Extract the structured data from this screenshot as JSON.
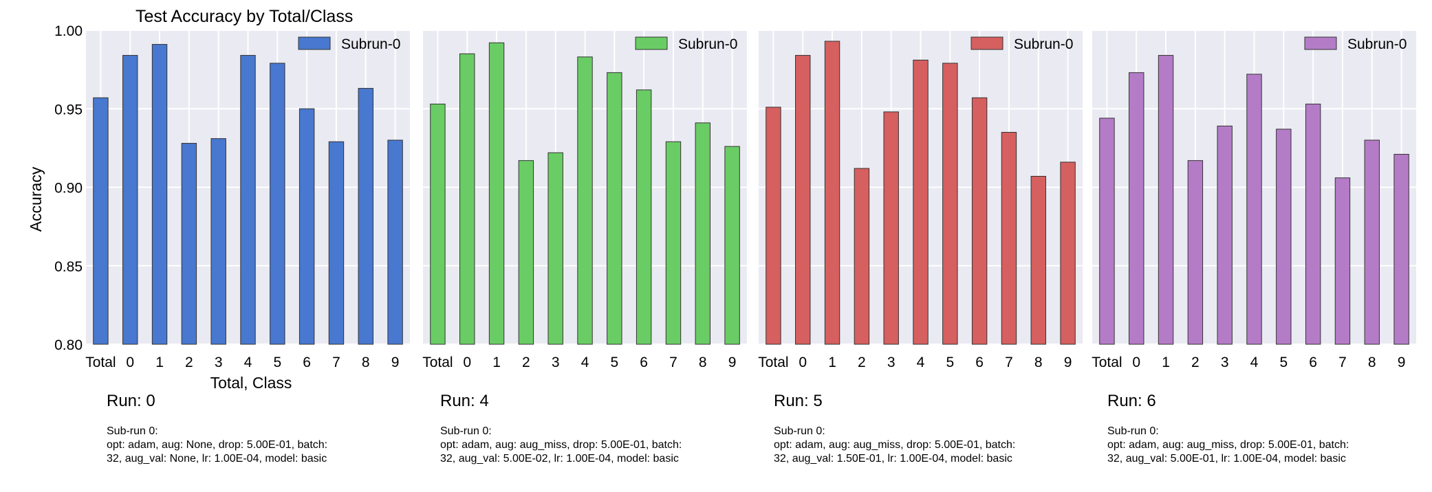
{
  "chart_data": {
    "type": "bar",
    "title": "Test Accuracy by Total/Class",
    "ylabel": "Accuracy",
    "xlabel": "Total, Class",
    "ylim": [
      0.8,
      1.0
    ],
    "yticks": [
      "0.80",
      "0.85",
      "0.90",
      "0.95",
      "1.00"
    ],
    "grid": true,
    "legend_position": "top-right",
    "categories": [
      "Total",
      "0",
      "1",
      "2",
      "3",
      "4",
      "5",
      "6",
      "7",
      "8",
      "9"
    ],
    "panels": [
      {
        "color": "#4878cf",
        "series": [
          {
            "name": "Subrun-0",
            "values": [
              0.957,
              0.984,
              0.991,
              0.928,
              0.931,
              0.984,
              0.979,
              0.95,
              0.929,
              0.963,
              0.93
            ]
          }
        ]
      },
      {
        "color": "#6acc65",
        "series": [
          {
            "name": "Subrun-0",
            "values": [
              0.953,
              0.985,
              0.992,
              0.917,
              0.922,
              0.983,
              0.973,
              0.962,
              0.929,
              0.941,
              0.926
            ]
          }
        ]
      },
      {
        "color": "#d65f5f",
        "series": [
          {
            "name": "Subrun-0",
            "values": [
              0.951,
              0.984,
              0.993,
              0.912,
              0.948,
              0.981,
              0.979,
              0.957,
              0.935,
              0.907,
              0.916
            ]
          }
        ]
      },
      {
        "color": "#b47cc7",
        "series": [
          {
            "name": "Subrun-0",
            "values": [
              0.944,
              0.973,
              0.984,
              0.917,
              0.939,
              0.972,
              0.937,
              0.953,
              0.906,
              0.93,
              0.921
            ]
          }
        ]
      }
    ]
  },
  "runs": [
    {
      "title": "Run: 0",
      "lines": [
        "Sub-run 0:",
        "opt: adam, aug: None, drop: 5.00E-01, batch:",
        "32, aug_val: None, lr: 1.00E-04, model: basic"
      ]
    },
    {
      "title": "Run: 4",
      "lines": [
        "Sub-run 0:",
        "opt: adam, aug: aug_miss, drop: 5.00E-01, batch:",
        "32, aug_val: 5.00E-02, lr: 1.00E-04, model: basic"
      ]
    },
    {
      "title": "Run: 5",
      "lines": [
        "Sub-run 0:",
        "opt: adam, aug: aug_miss, drop: 5.00E-01, batch:",
        "32, aug_val: 1.50E-01, lr: 1.00E-04, model: basic"
      ]
    },
    {
      "title": "Run: 6",
      "lines": [
        "Sub-run 0:",
        "opt: adam, aug: aug_miss, drop: 5.00E-01, batch:",
        "32, aug_val: 5.00E-01, lr: 1.00E-04, model: basic"
      ]
    }
  ]
}
